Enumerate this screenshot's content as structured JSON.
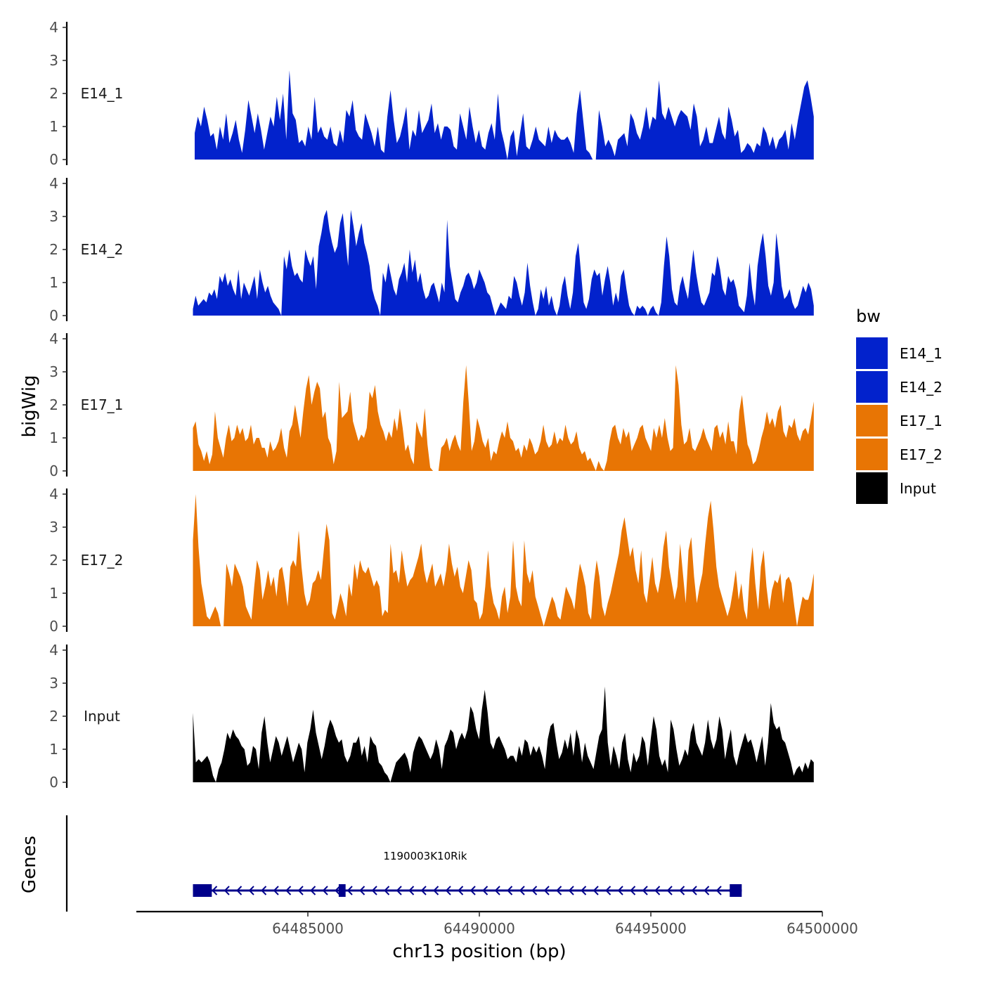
{
  "chart_data": {
    "type": "area",
    "y_axis_title": "bigWig",
    "x_axis_title": "chr13 position (bp)",
    "genes_axis_title": "Genes",
    "xlim": [
      64480000,
      64500000
    ],
    "x_ticks": [
      64485000,
      64490000,
      64495000,
      64500000
    ],
    "x_tick_labels": [
      "64485000",
      "64490000",
      "64495000",
      "64500000"
    ],
    "ylim": [
      0,
      4
    ],
    "y_ticks": [
      0,
      1,
      2,
      3,
      4
    ],
    "y_tick_labels": [
      "0",
      "1",
      "2",
      "3",
      "4"
    ],
    "legend": {
      "title": "bw",
      "items": [
        {
          "label": "E14_1",
          "color": "#0222cc"
        },
        {
          "label": "E14_2",
          "color": "#0222cc"
        },
        {
          "label": "E17_1",
          "color": "#e87504"
        },
        {
          "label": "E17_2",
          "color": "#e87504"
        },
        {
          "label": "Input",
          "color": "#000000"
        }
      ]
    },
    "series": [
      {
        "name": "E14_1",
        "color": "#0222cc",
        "x_start": 64481700,
        "x_end": 64499750,
        "values": [
          0.8,
          1.3,
          1.0,
          1.6,
          1.2,
          0.7,
          0.8,
          0.3,
          1.0,
          0.6,
          1.4,
          0.5,
          0.8,
          1.2,
          0.6,
          0.2,
          0.9,
          1.8,
          1.3,
          0.8,
          1.4,
          0.9,
          0.3,
          0.8,
          1.3,
          1.0,
          1.9,
          1.2,
          2.0,
          0.6,
          2.7,
          1.4,
          1.2,
          0.5,
          0.6,
          0.4,
          1.0,
          0.6,
          1.9,
          0.8,
          1.0,
          0.7,
          0.6,
          1.0,
          0.5,
          0.4,
          0.9,
          0.5,
          1.5,
          1.3,
          1.8,
          0.9,
          0.7,
          0.6,
          1.4,
          1.1,
          0.8,
          0.4,
          1.0,
          0.3,
          0.2,
          1.3,
          2.1,
          1.2,
          0.5,
          0.7,
          1.1,
          1.6,
          0.3,
          0.9,
          0.7,
          1.5,
          0.8,
          1.0,
          1.2,
          1.7,
          0.8,
          1.1,
          0.6,
          1.0,
          1.0,
          0.9,
          0.4,
          0.3,
          1.4,
          1.0,
          0.6,
          1.6,
          1.0,
          0.5,
          0.9,
          0.4,
          0.3,
          0.8,
          1.1,
          0.6,
          2.0,
          0.9,
          0.5,
          0.0,
          0.7,
          0.9,
          0.1,
          0.8,
          1.4,
          0.4,
          0.3,
          0.6,
          1.0,
          0.6,
          0.5,
          0.4,
          1.0,
          0.5,
          0.9,
          0.7,
          0.6,
          0.6,
          0.7,
          0.5,
          0.2,
          1.4,
          2.1,
          1.2,
          0.3,
          0.2,
          0.0,
          0.0,
          1.5,
          1.0,
          0.4,
          0.6,
          0.4,
          0.1,
          0.6,
          0.7,
          0.8,
          0.4,
          1.4,
          1.2,
          0.8,
          0.6,
          1.0,
          1.6,
          0.9,
          1.3,
          1.2,
          2.4,
          1.4,
          1.2,
          1.6,
          1.3,
          1.0,
          1.3,
          1.5,
          1.4,
          1.3,
          0.9,
          1.7,
          1.3,
          0.4,
          0.6,
          1.0,
          0.5,
          0.5,
          0.9,
          1.3,
          0.8,
          0.6,
          1.6,
          1.2,
          0.7,
          0.9,
          0.2,
          0.3,
          0.5,
          0.4,
          0.2,
          0.5,
          0.4,
          1.0,
          0.8,
          0.4,
          0.7,
          0.3,
          0.6,
          0.7,
          0.9,
          0.3,
          1.1,
          0.6,
          1.2,
          1.7,
          2.2,
          2.4,
          1.9,
          1.3
        ]
      },
      {
        "name": "E14_2",
        "color": "#0222cc",
        "x_start": 64481650,
        "x_end": 64499750,
        "values": [
          0.2,
          0.6,
          0.3,
          0.4,
          0.5,
          0.4,
          0.7,
          0.6,
          0.8,
          0.5,
          1.2,
          1.0,
          1.3,
          0.9,
          1.1,
          0.8,
          0.6,
          1.4,
          0.5,
          1.0,
          0.8,
          0.6,
          0.9,
          1.2,
          0.5,
          1.4,
          1.0,
          0.7,
          0.9,
          0.6,
          0.4,
          0.3,
          0.2,
          0.0,
          1.8,
          1.4,
          2.0,
          1.5,
          1.2,
          1.3,
          1.1,
          1.0,
          2.0,
          1.7,
          1.5,
          1.8,
          0.8,
          2.1,
          2.5,
          3.0,
          3.2,
          2.6,
          2.2,
          1.9,
          2.1,
          2.8,
          3.1,
          2.3,
          1.5,
          3.2,
          2.7,
          2.1,
          2.5,
          2.8,
          2.2,
          1.9,
          1.5,
          0.8,
          0.5,
          0.3,
          0.0,
          1.3,
          1.0,
          1.6,
          1.2,
          0.8,
          0.6,
          1.1,
          1.3,
          1.6,
          1.0,
          2.0,
          1.3,
          1.7,
          1.0,
          1.3,
          0.8,
          0.5,
          0.6,
          0.9,
          1.0,
          0.7,
          0.4,
          1.0,
          0.7,
          2.9,
          1.5,
          1.0,
          0.5,
          0.4,
          0.7,
          0.9,
          1.2,
          1.3,
          1.1,
          0.8,
          1.0,
          1.4,
          1.2,
          1.0,
          0.7,
          0.6,
          0.3,
          0.0,
          0.2,
          0.4,
          0.3,
          0.2,
          0.6,
          0.5,
          1.2,
          1.0,
          0.6,
          0.3,
          0.7,
          1.6,
          0.9,
          0.4,
          0.0,
          0.2,
          0.8,
          0.5,
          0.9,
          0.3,
          0.6,
          0.2,
          0.0,
          0.3,
          0.9,
          1.2,
          0.6,
          0.2,
          0.7,
          1.8,
          2.2,
          1.3,
          0.4,
          0.2,
          0.5,
          1.1,
          1.4,
          1.2,
          1.3,
          0.6,
          1.1,
          1.5,
          1.0,
          0.3,
          0.7,
          0.4,
          1.2,
          1.4,
          0.8,
          0.3,
          0.1,
          0.0,
          0.3,
          0.2,
          0.3,
          0.2,
          0.0,
          0.2,
          0.3,
          0.1,
          0.0,
          0.4,
          1.5,
          2.4,
          1.8,
          0.8,
          0.4,
          0.3,
          0.9,
          1.2,
          0.8,
          0.5,
          1.3,
          2.0,
          1.3,
          0.8,
          0.4,
          0.3,
          0.5,
          0.7,
          1.3,
          1.2,
          1.8,
          1.4,
          0.8,
          0.6,
          1.2,
          1.0,
          1.1,
          0.8,
          0.3,
          0.2,
          0.1,
          0.6,
          1.6,
          0.8,
          0.3,
          1.5,
          2.1,
          2.5,
          1.8,
          0.9,
          0.6,
          1.0,
          2.5,
          1.8,
          0.9,
          0.5,
          0.6,
          0.8,
          0.4,
          0.2,
          0.3,
          0.6,
          0.9,
          0.7,
          1.0,
          0.8,
          0.3
        ]
      },
      {
        "name": "E17_1",
        "color": "#e87504",
        "x_start": 64481650,
        "x_end": 64499750,
        "values": [
          1.3,
          1.5,
          0.8,
          0.6,
          0.3,
          0.6,
          0.2,
          0.5,
          1.8,
          1.0,
          0.7,
          0.4,
          1.0,
          1.4,
          0.9,
          1.0,
          1.4,
          1.1,
          1.3,
          0.9,
          1.0,
          1.4,
          0.8,
          1.0,
          1.0,
          0.7,
          0.7,
          0.4,
          0.9,
          0.6,
          0.7,
          0.9,
          1.3,
          0.7,
          0.4,
          1.2,
          1.4,
          2.0,
          1.5,
          1.0,
          1.8,
          2.5,
          2.9,
          2.0,
          2.4,
          2.7,
          2.5,
          1.6,
          1.8,
          1.0,
          0.8,
          0.2,
          0.6,
          2.7,
          1.6,
          1.7,
          1.8,
          2.4,
          1.5,
          1.2,
          0.9,
          1.1,
          1.0,
          1.3,
          2.4,
          2.2,
          2.6,
          1.8,
          1.4,
          1.2,
          0.9,
          1.2,
          1.0,
          1.6,
          1.2,
          1.9,
          1.3,
          0.6,
          0.8,
          0.4,
          0.2,
          1.5,
          1.2,
          1.0,
          1.9,
          0.8,
          0.1,
          0.0,
          0.0,
          0.0,
          0.7,
          0.8,
          1.0,
          0.6,
          0.9,
          1.1,
          0.8,
          0.6,
          2.1,
          3.2,
          2.0,
          0.6,
          0.9,
          1.6,
          1.3,
          0.9,
          0.7,
          1.0,
          0.3,
          0.6,
          0.5,
          0.9,
          1.2,
          1.0,
          1.5,
          1.0,
          0.9,
          0.6,
          0.7,
          0.4,
          0.8,
          0.6,
          1.0,
          0.8,
          0.5,
          0.6,
          0.9,
          1.4,
          0.9,
          0.7,
          0.8,
          1.2,
          0.8,
          1.0,
          0.9,
          1.4,
          1.0,
          0.8,
          0.9,
          1.2,
          0.7,
          0.5,
          0.6,
          0.3,
          0.4,
          0.2,
          0.0,
          0.3,
          0.1,
          0.0,
          0.3,
          0.9,
          1.3,
          1.4,
          1.0,
          0.8,
          1.3,
          1.0,
          1.2,
          0.6,
          0.8,
          1.0,
          1.3,
          1.4,
          1.0,
          0.8,
          0.6,
          1.3,
          1.0,
          1.4,
          1.0,
          1.6,
          1.0,
          0.6,
          0.7,
          3.2,
          2.6,
          1.4,
          0.8,
          0.9,
          1.3,
          0.7,
          0.6,
          0.8,
          1.0,
          1.3,
          1.0,
          0.8,
          0.6,
          1.3,
          1.4,
          1.0,
          1.2,
          0.8,
          1.5,
          0.9,
          0.9,
          0.5,
          1.8,
          2.3,
          1.5,
          0.8,
          0.6,
          0.2,
          0.3,
          0.6,
          1.0,
          1.3,
          1.8,
          1.4,
          1.6,
          1.3,
          1.8,
          2.0,
          1.2,
          1.0,
          1.4,
          1.3,
          1.6,
          1.1,
          0.9,
          1.2,
          1.3,
          1.1,
          1.6,
          2.1
        ]
      },
      {
        "name": "E17_2",
        "color": "#e87504",
        "x_start": 64481650,
        "x_end": 64499750,
        "values": [
          2.6,
          4.0,
          2.4,
          1.3,
          0.8,
          0.3,
          0.2,
          0.4,
          0.6,
          0.4,
          0.0,
          0.0,
          1.9,
          1.6,
          1.2,
          1.9,
          1.7,
          1.5,
          1.2,
          0.6,
          0.4,
          0.2,
          1.2,
          2.0,
          1.7,
          0.8,
          1.2,
          1.7,
          1.2,
          1.5,
          0.9,
          1.7,
          1.8,
          1.3,
          0.6,
          1.8,
          2.0,
          1.8,
          2.9,
          1.8,
          1.0,
          0.6,
          0.8,
          1.3,
          1.4,
          1.7,
          1.4,
          2.3,
          3.1,
          2.6,
          0.4,
          0.2,
          0.6,
          1.0,
          0.7,
          0.3,
          1.3,
          0.9,
          1.9,
          1.4,
          2.0,
          1.7,
          1.6,
          1.8,
          1.5,
          1.2,
          1.4,
          1.2,
          0.3,
          0.5,
          0.4,
          2.5,
          1.6,
          1.7,
          1.3,
          2.3,
          1.7,
          1.2,
          1.4,
          1.5,
          1.8,
          2.1,
          2.5,
          1.7,
          1.3,
          1.6,
          1.9,
          1.2,
          1.4,
          1.6,
          1.2,
          1.7,
          2.5,
          1.9,
          1.5,
          1.8,
          1.2,
          1.0,
          1.5,
          2.0,
          1.7,
          0.8,
          0.7,
          0.2,
          0.4,
          1.2,
          2.3,
          1.2,
          0.7,
          0.5,
          0.2,
          0.9,
          1.2,
          0.4,
          0.9,
          2.6,
          1.2,
          0.8,
          0.6,
          2.6,
          1.6,
          1.3,
          1.7,
          0.9,
          0.6,
          0.3,
          0.0,
          0.3,
          0.6,
          0.9,
          0.7,
          0.3,
          0.2,
          0.7,
          1.2,
          1.0,
          0.8,
          0.5,
          1.3,
          1.9,
          1.6,
          1.2,
          0.4,
          0.2,
          1.3,
          2.0,
          1.5,
          0.6,
          0.3,
          0.7,
          1.0,
          1.4,
          1.8,
          2.2,
          2.9,
          3.3,
          2.7,
          2.1,
          2.4,
          1.7,
          1.3,
          2.3,
          1.0,
          0.7,
          1.4,
          2.1,
          1.3,
          1.0,
          1.5,
          2.4,
          2.9,
          1.8,
          1.3,
          0.8,
          1.2,
          2.5,
          1.6,
          0.7,
          2.3,
          2.7,
          1.5,
          0.7,
          1.2,
          1.6,
          2.5,
          3.3,
          3.8,
          2.9,
          1.8,
          1.2,
          0.9,
          0.6,
          0.3,
          0.6,
          1.1,
          1.7,
          0.8,
          1.3,
          0.5,
          0.2,
          1.6,
          2.4,
          1.3,
          0.5,
          1.8,
          2.3,
          1.2,
          0.5,
          1.1,
          1.4,
          1.3,
          1.6,
          0.7,
          1.4,
          1.5,
          1.3,
          0.6,
          0.0,
          0.5,
          0.9,
          0.8,
          0.8,
          1.1,
          1.6
        ]
      },
      {
        "name": "Input",
        "color": "#000000",
        "x_start": 64481650,
        "x_end": 64499750,
        "values": [
          2.1,
          0.6,
          0.7,
          0.6,
          0.7,
          0.8,
          0.6,
          0.2,
          0.0,
          0.4,
          0.6,
          1.0,
          1.5,
          1.3,
          1.6,
          1.4,
          1.3,
          1.1,
          1.0,
          0.5,
          0.6,
          1.1,
          1.0,
          0.4,
          1.5,
          2.0,
          1.2,
          0.6,
          1.0,
          1.4,
          1.2,
          0.8,
          1.1,
          1.4,
          1.0,
          0.6,
          0.9,
          1.2,
          1.0,
          0.3,
          1.2,
          1.6,
          2.2,
          1.5,
          1.1,
          0.7,
          1.1,
          1.6,
          1.9,
          1.7,
          1.4,
          1.2,
          1.3,
          0.8,
          0.6,
          0.8,
          1.2,
          1.2,
          1.4,
          0.8,
          1.1,
          0.6,
          1.4,
          1.2,
          1.1,
          0.6,
          0.5,
          0.3,
          0.2,
          0.0,
          0.3,
          0.6,
          0.7,
          0.8,
          0.9,
          0.7,
          0.3,
          0.9,
          1.2,
          1.4,
          1.3,
          1.1,
          0.9,
          0.7,
          0.9,
          1.3,
          1.0,
          0.4,
          1.1,
          1.3,
          1.6,
          1.5,
          1.0,
          1.3,
          1.5,
          1.3,
          1.6,
          2.3,
          2.1,
          1.6,
          1.3,
          2.2,
          2.8,
          2.1,
          1.2,
          1.0,
          1.3,
          1.4,
          1.2,
          1.0,
          0.7,
          0.8,
          0.8,
          0.6,
          1.1,
          0.8,
          1.3,
          1.2,
          0.8,
          1.1,
          0.9,
          1.1,
          0.8,
          0.4,
          1.3,
          1.7,
          1.8,
          1.2,
          0.7,
          0.9,
          1.3,
          1.0,
          1.5,
          0.8,
          1.6,
          1.3,
          0.6,
          1.2,
          0.8,
          0.6,
          0.4,
          0.9,
          1.4,
          1.6,
          2.9,
          1.2,
          0.5,
          1.1,
          0.8,
          0.4,
          1.2,
          1.5,
          0.7,
          0.3,
          0.9,
          0.6,
          0.8,
          1.4,
          1.2,
          0.5,
          1.3,
          2.0,
          1.6,
          0.8,
          0.5,
          0.7,
          0.3,
          1.9,
          1.6,
          1.0,
          0.5,
          0.7,
          1.0,
          0.8,
          1.5,
          1.8,
          1.2,
          1.0,
          0.8,
          1.2,
          1.9,
          1.3,
          1.0,
          1.3,
          2.0,
          1.6,
          0.7,
          1.2,
          1.6,
          0.8,
          0.5,
          0.9,
          1.2,
          1.5,
          1.2,
          1.3,
          1.0,
          0.6,
          1.0,
          1.4,
          0.5,
          1.2,
          2.4,
          1.8,
          1.6,
          1.7,
          1.3,
          1.2,
          0.9,
          0.6,
          0.2,
          0.4,
          0.5,
          0.3,
          0.6,
          0.4,
          0.7,
          0.6
        ]
      }
    ],
    "genes": [
      {
        "name": "1190003K10Rik",
        "strand": "-",
        "start": 64481650,
        "end": 64497650,
        "exons": [
          [
            64481650,
            64482200
          ],
          [
            64485900,
            64486100
          ],
          [
            64497300,
            64497650
          ]
        ],
        "color": "#00008b"
      }
    ]
  }
}
